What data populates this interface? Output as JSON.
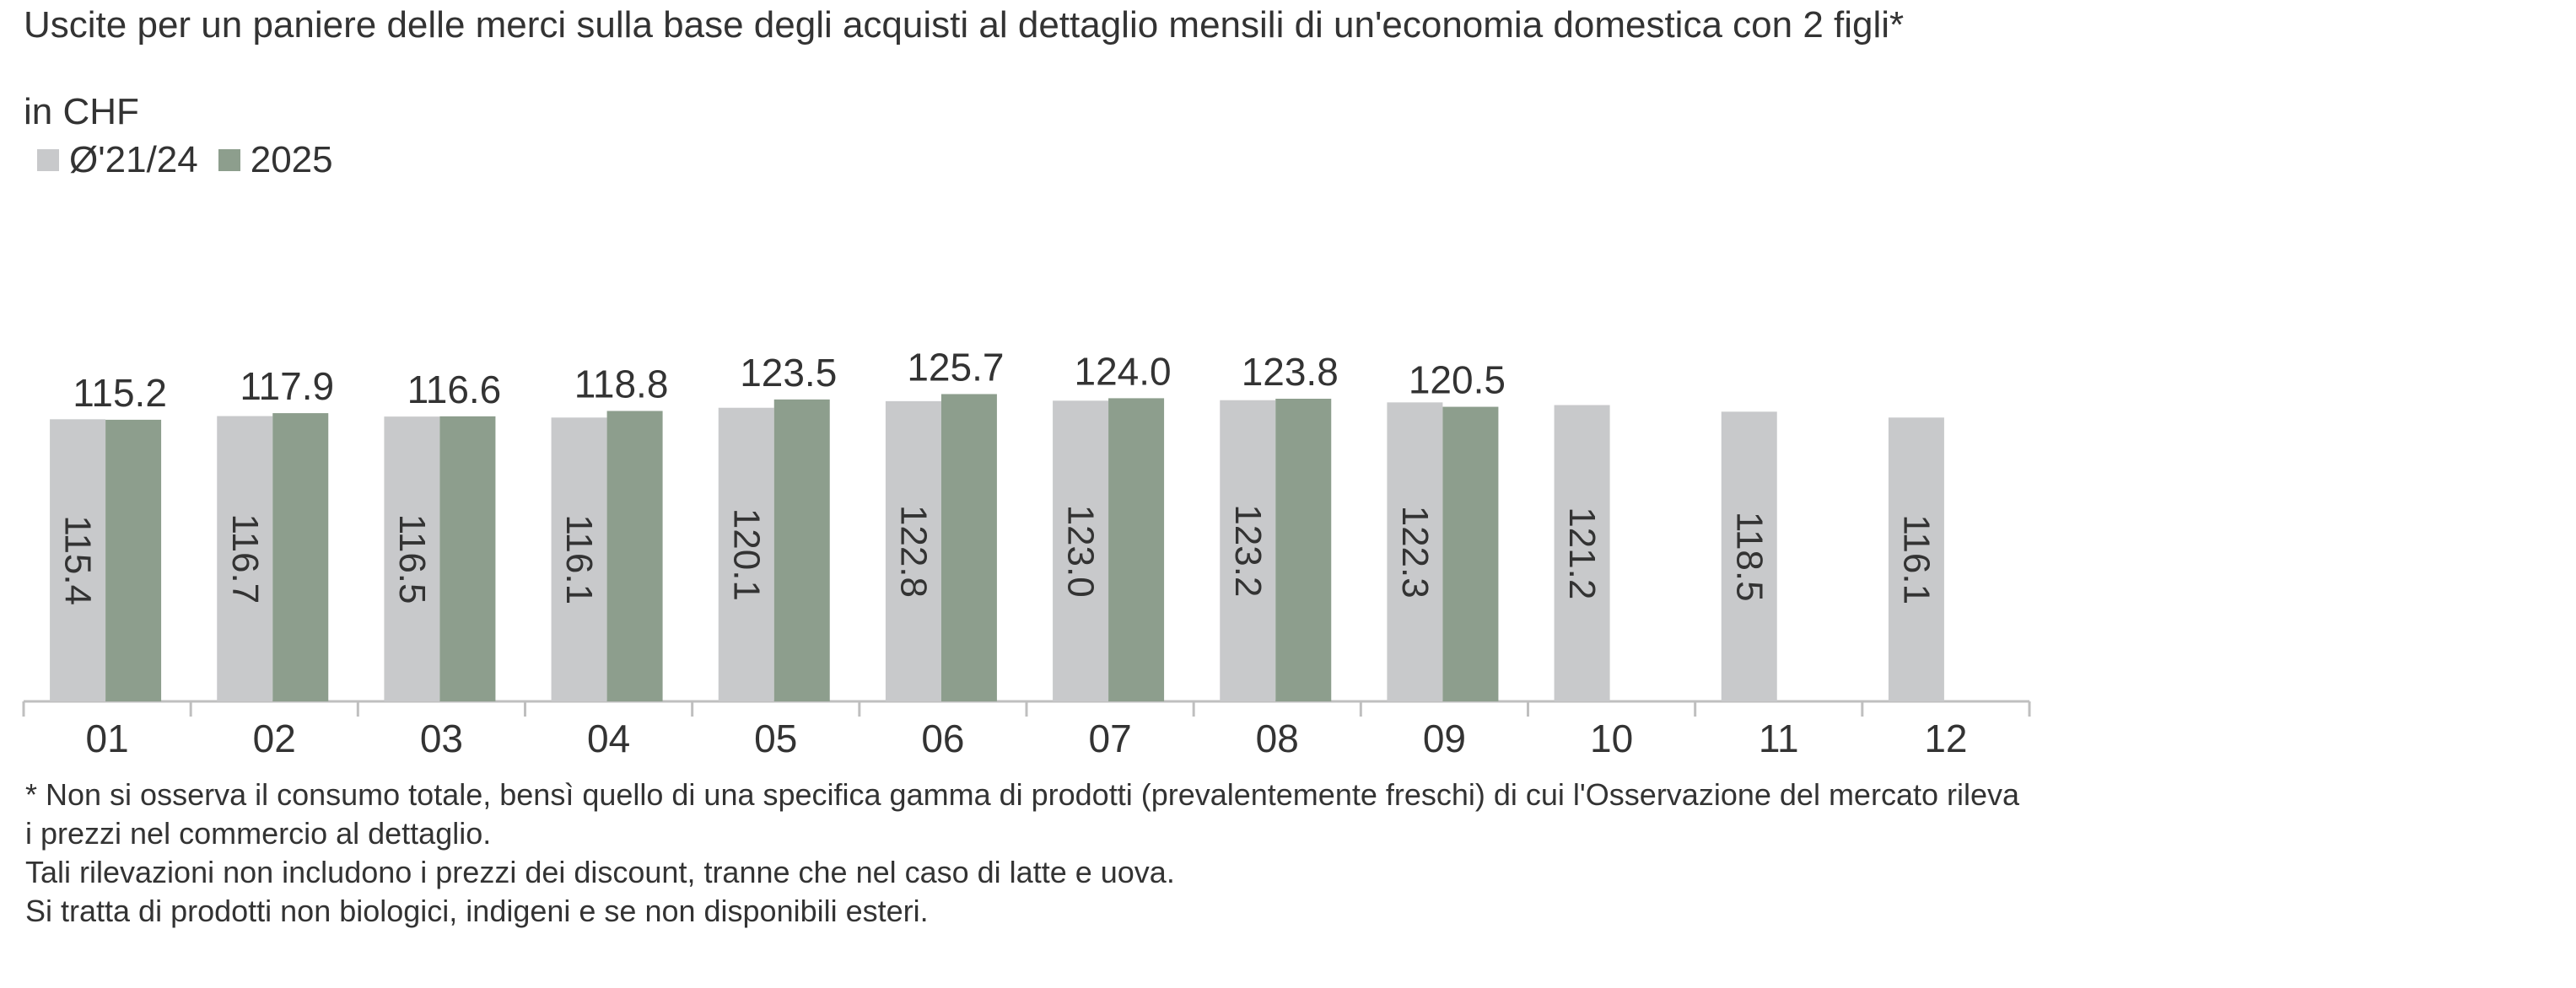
{
  "chart_data": {
    "type": "bar",
    "title": "Uscite per un paniere delle merci sulla base degli acquisti al dettaglio mensili di un'economia domestica con 2 figli*",
    "subtitle": "in CHF",
    "categories": [
      "01",
      "02",
      "03",
      "04",
      "05",
      "06",
      "07",
      "08",
      "09",
      "10",
      "11",
      "12"
    ],
    "series": [
      {
        "name": "Ø'21/24",
        "color": "#c8c9cb",
        "label_position": "inside-rotated",
        "values": [
          115.4,
          116.7,
          116.5,
          116.1,
          120.1,
          122.8,
          123.0,
          123.2,
          122.3,
          121.2,
          118.5,
          116.1
        ],
        "labels": [
          "115.4",
          "116.7",
          "116.5",
          "116.1",
          "120.1",
          "122.8",
          "123.0",
          "123.2",
          "122.3",
          "121.2",
          "118.5",
          "116.1"
        ]
      },
      {
        "name": "2025",
        "color": "#8d9e8d",
        "label_position": "above",
        "values": [
          115.2,
          117.9,
          116.6,
          118.8,
          123.5,
          125.7,
          124.0,
          123.8,
          120.5,
          null,
          null,
          null
        ],
        "labels": [
          "115.2",
          "117.9",
          "116.6",
          "118.8",
          "123.5",
          "125.7",
          "124.0",
          "123.8",
          "120.5",
          null,
          null,
          null
        ]
      }
    ],
    "ylim": [
      0,
      170
    ],
    "xlabel": "",
    "ylabel": "",
    "grid": false,
    "legend_position": "top-left"
  },
  "footnote": [
    "* Non si osserva il consumo totale, bensì quello di una specifica gamma di prodotti  (prevalentemente  freschi) di cui l'Osservazione del mercato rileva i prezzi nel commercio al dettaglio.",
    "Tali rilevazioni non includono i prezzi dei discount, tranne che nel caso di latte e uova.",
    "Si tratta di prodotti non biologici, indigeni e se non disponibili esteri."
  ],
  "colors": {
    "axis": "#bfbfbf",
    "text": "#333333"
  }
}
